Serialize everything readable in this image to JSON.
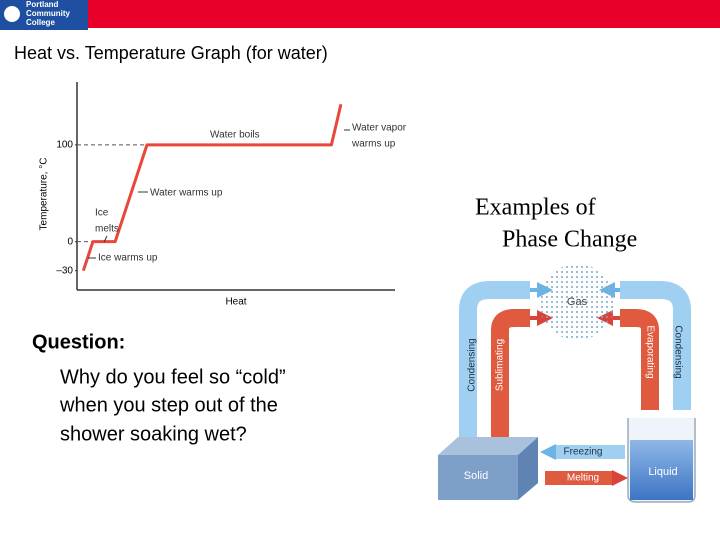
{
  "header": {
    "logo": [
      "Portland",
      "Community",
      "College"
    ]
  },
  "title": "Heat vs. Temperature Graph (for water)",
  "chart_data": {
    "type": "line",
    "y_label": "Temperature, °C",
    "x_label": "Heat",
    "x": [
      2,
      5,
      12,
      22,
      80,
      83
    ],
    "series": [
      {
        "values": [
          -30,
          0,
          0,
          100,
          100,
          142
        ],
        "color": "#e8473c"
      }
    ],
    "xlim": [
      0,
      100
    ],
    "ylim": [
      -50,
      165
    ],
    "yticks": [
      {
        "value": -30,
        "label": "–30"
      },
      0,
      100
    ],
    "guide_lines": [
      100,
      0
    ],
    "annotations": [
      [
        "Water boils"
      ],
      [
        "Water vapor",
        "warms up"
      ],
      [
        "Water warms up"
      ],
      [
        "Ice",
        "melts"
      ],
      [
        "Ice warms up"
      ]
    ]
  },
  "question": {
    "label": "Question:",
    "lines": [
      "Why do you feel so “cold”",
      "when you step out of the",
      "shower soaking wet?"
    ]
  },
  "phase": {
    "title": [
      "Examples of",
      "Phase Change"
    ],
    "states": {
      "gas": "Gas",
      "solid": "Solid",
      "liquid": "Liquid"
    },
    "processes": {
      "left_outer": "Condensing",
      "left_inner": "Sublimating",
      "right_inner": "Evaporating",
      "right_outer": "Condensing",
      "freezing": "Freezing",
      "melting": "Melting"
    }
  }
}
